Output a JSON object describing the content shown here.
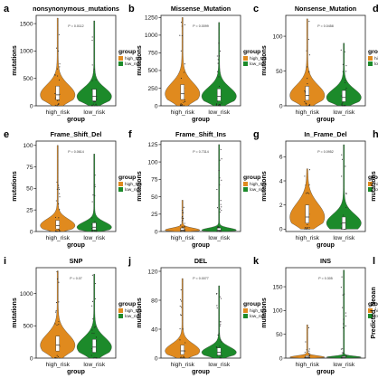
{
  "colors": {
    "high_risk": "#e08a1e",
    "low_risk": "#1c8a2a"
  },
  "legend": {
    "title": "group",
    "items": [
      "high_risk",
      "low_risk"
    ]
  },
  "axis": {
    "xlabel": "group",
    "ylabel": "mutations"
  },
  "chart_data": [
    {
      "type": "violin",
      "letter": "a",
      "title": "nonsynonymous_mutations",
      "p": "P = 0.0112",
      "categories": [
        "high_risk",
        "low_risk"
      ],
      "ylim": [
        0,
        1650
      ],
      "yticks": [
        0,
        500,
        1000,
        1500
      ],
      "series": [
        {
          "name": "high_risk",
          "median": 200,
          "q1": 110,
          "q3": 360,
          "max": 1600
        },
        {
          "name": "low_risk",
          "median": 170,
          "q1": 90,
          "q3": 300,
          "max": 1550
        }
      ]
    },
    {
      "type": "violin",
      "letter": "b",
      "title": "Missense_Mutation",
      "p": "P = 0.0099",
      "categories": [
        "high_risk",
        "low_risk"
      ],
      "ylim": [
        0,
        1280
      ],
      "yticks": [
        0,
        250,
        500,
        750,
        1000,
        1250
      ],
      "series": [
        {
          "name": "high_risk",
          "median": 170,
          "q1": 90,
          "q3": 300,
          "max": 1250
        },
        {
          "name": "low_risk",
          "median": 135,
          "q1": 70,
          "q3": 240,
          "max": 1180
        }
      ]
    },
    {
      "type": "violin",
      "letter": "c",
      "title": "Nonsense_Mutation",
      "p": "P = 0.0458",
      "categories": [
        "high_risk",
        "low_risk"
      ],
      "ylim": [
        0,
        130
      ],
      "yticks": [
        0,
        50,
        100
      ],
      "series": [
        {
          "name": "high_risk",
          "median": 15,
          "q1": 8,
          "q3": 28,
          "max": 125
        },
        {
          "name": "low_risk",
          "median": 12,
          "q1": 6,
          "q3": 22,
          "max": 90
        }
      ]
    },
    {
      "type": "violin",
      "letter": "e",
      "title": "Frame_Shift_Del",
      "p": "P = 0.0614",
      "categories": [
        "high_risk",
        "low_risk"
      ],
      "ylim": [
        0,
        105
      ],
      "yticks": [
        0,
        25,
        50,
        75,
        100
      ],
      "series": [
        {
          "name": "high_risk",
          "median": 7,
          "q1": 3,
          "q3": 13,
          "max": 100
        },
        {
          "name": "low_risk",
          "median": 5,
          "q1": 2,
          "q3": 10,
          "max": 90
        }
      ]
    },
    {
      "type": "violin",
      "letter": "f",
      "title": "Frame_Shift_Ins",
      "p": "P = 0.7314",
      "categories": [
        "high_risk",
        "low_risk"
      ],
      "ylim": [
        0,
        130
      ],
      "yticks": [
        0,
        25,
        50,
        75,
        100,
        125
      ],
      "series": [
        {
          "name": "high_risk",
          "median": 2,
          "q1": 1,
          "q3": 5,
          "max": 45
        },
        {
          "name": "low_risk",
          "median": 2,
          "q1": 1,
          "q3": 5,
          "max": 125
        }
      ]
    },
    {
      "type": "violin",
      "letter": "g",
      "title": "In_Frame_Del",
      "p": "P = 0.0952",
      "categories": [
        "high_risk",
        "low_risk"
      ],
      "ylim": [
        -0.2,
        7.3
      ],
      "yticks": [
        0,
        2,
        4,
        6
      ],
      "series": [
        {
          "name": "high_risk",
          "median": 1,
          "q1": 0.5,
          "q3": 2,
          "max": 5
        },
        {
          "name": "low_risk",
          "median": 0.5,
          "q1": 0,
          "q3": 1,
          "max": 7
        }
      ]
    },
    {
      "type": "violin",
      "letter": "i",
      "title": "SNP",
      "p": "P = 0.07",
      "categories": [
        "high_risk",
        "low_risk"
      ],
      "ylim": [
        0,
        1400
      ],
      "yticks": [
        0,
        500,
        1000
      ],
      "series": [
        {
          "name": "high_risk",
          "median": 200,
          "q1": 110,
          "q3": 340,
          "max": 1350
        },
        {
          "name": "low_risk",
          "median": 170,
          "q1": 90,
          "q3": 290,
          "max": 1300
        }
      ]
    },
    {
      "type": "violin",
      "letter": "j",
      "title": "DEL",
      "p": "P = 0.0077",
      "categories": [
        "high_risk",
        "low_risk"
      ],
      "ylim": [
        0,
        125
      ],
      "yticks": [
        0,
        40,
        80,
        120
      ],
      "series": [
        {
          "name": "high_risk",
          "median": 10,
          "q1": 5,
          "q3": 18,
          "max": 110
        },
        {
          "name": "low_risk",
          "median": 8,
          "q1": 4,
          "q3": 14,
          "max": 100
        }
      ]
    },
    {
      "type": "violin",
      "letter": "k",
      "title": "INS",
      "p": "P = 0.305",
      "categories": [
        "high_risk",
        "low_risk"
      ],
      "ylim": [
        0,
        190
      ],
      "yticks": [
        0,
        50,
        100,
        150
      ],
      "series": [
        {
          "name": "high_risk",
          "median": 2,
          "q1": 1,
          "q3": 5,
          "max": 70
        },
        {
          "name": "low_risk",
          "median": 2,
          "q1": 1,
          "q3": 4,
          "max": 185
        }
      ]
    }
  ],
  "partial": [
    {
      "letter": "d"
    },
    {
      "letter": "h",
      "ylabel": "mutations"
    },
    {
      "letter": "l",
      "ylabel": "Predicted_Neoan"
    }
  ]
}
